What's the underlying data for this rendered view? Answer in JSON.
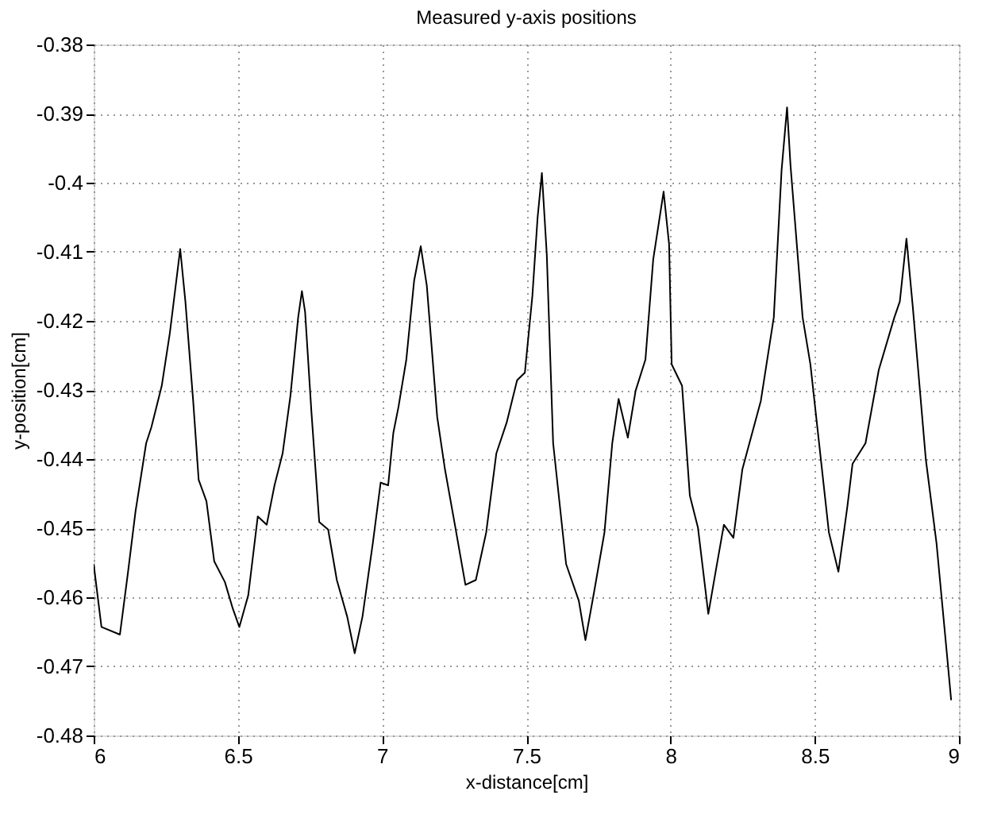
{
  "chart_data": {
    "type": "line",
    "title": "Measured y-axis positions",
    "xlabel": "x-distance[cm]",
    "ylabel": "y-position[cm]",
    "xlim": [
      6,
      9
    ],
    "xticks": [
      6,
      6.5,
      7,
      7.5,
      8,
      8.5,
      9
    ],
    "ylim": [
      -0.48,
      -0.38
    ],
    "yticks": [
      -0.48,
      -0.47,
      -0.46,
      -0.45,
      -0.44,
      -0.43,
      -0.42,
      -0.41,
      -0.4,
      -0.39,
      -0.38
    ],
    "grid": true,
    "marker": "none",
    "line_style": "solid",
    "series": [
      {
        "color": "#000000",
        "x": [
          6.0,
          6.027,
          6.091,
          6.118,
          6.145,
          6.182,
          6.2,
          6.236,
          6.264,
          6.3,
          6.318,
          6.345,
          6.364,
          6.391,
          6.418,
          6.455,
          6.482,
          6.505,
          6.536,
          6.569,
          6.6,
          6.627,
          6.655,
          6.682,
          6.709,
          6.722,
          6.733,
          6.755,
          6.782,
          6.813,
          6.843,
          6.879,
          6.905,
          6.932,
          6.968,
          6.995,
          7.021,
          7.039,
          7.057,
          7.084,
          7.111,
          7.134,
          7.155,
          7.191,
          7.218,
          7.254,
          7.289,
          7.325,
          7.361,
          7.396,
          7.432,
          7.468,
          7.495,
          7.521,
          7.539,
          7.554,
          7.571,
          7.593,
          7.638,
          7.682,
          7.705,
          7.736,
          7.771,
          7.798,
          7.82,
          7.852,
          7.879,
          7.913,
          7.94,
          7.976,
          7.995,
          8.004,
          8.04,
          8.067,
          8.095,
          8.131,
          8.158,
          8.185,
          8.218,
          8.249,
          8.313,
          8.358,
          8.385,
          8.404,
          8.416,
          8.458,
          8.485,
          8.513,
          8.549,
          8.582,
          8.613,
          8.631,
          8.676,
          8.722,
          8.776,
          8.795,
          8.818,
          8.84,
          8.885,
          8.922,
          8.958,
          8.973
        ],
        "values": [
          -0.4552,
          -0.4643,
          -0.4654,
          -0.4567,
          -0.4476,
          -0.4377,
          -0.4354,
          -0.4294,
          -0.4218,
          -0.4096,
          -0.4172,
          -0.4316,
          -0.443,
          -0.4461,
          -0.4548,
          -0.4578,
          -0.4616,
          -0.4643,
          -0.4597,
          -0.4483,
          -0.4495,
          -0.4438,
          -0.4392,
          -0.4309,
          -0.4195,
          -0.4157,
          -0.4187,
          -0.4332,
          -0.4491,
          -0.4502,
          -0.4575,
          -0.4628,
          -0.4681,
          -0.4628,
          -0.4521,
          -0.4434,
          -0.4438,
          -0.4362,
          -0.4324,
          -0.4256,
          -0.4142,
          -0.4092,
          -0.4149,
          -0.4339,
          -0.4415,
          -0.4499,
          -0.4582,
          -0.4575,
          -0.4506,
          -0.4392,
          -0.4347,
          -0.4286,
          -0.4275,
          -0.4164,
          -0.4051,
          -0.3986,
          -0.4104,
          -0.4377,
          -0.4552,
          -0.4605,
          -0.4662,
          -0.459,
          -0.4506,
          -0.4377,
          -0.4313,
          -0.4369,
          -0.4301,
          -0.4256,
          -0.4111,
          -0.4013,
          -0.4089,
          -0.4263,
          -0.4294,
          -0.4453,
          -0.4499,
          -0.4624,
          -0.4559,
          -0.4495,
          -0.4514,
          -0.4415,
          -0.4316,
          -0.4195,
          -0.3982,
          -0.3891,
          -0.3975,
          -0.4195,
          -0.4263,
          -0.4369,
          -0.4506,
          -0.4563,
          -0.4469,
          -0.4407,
          -0.4377,
          -0.4271,
          -0.4195,
          -0.4172,
          -0.4081,
          -0.418,
          -0.44,
          -0.4521,
          -0.4681,
          -0.4749
        ]
      }
    ]
  }
}
